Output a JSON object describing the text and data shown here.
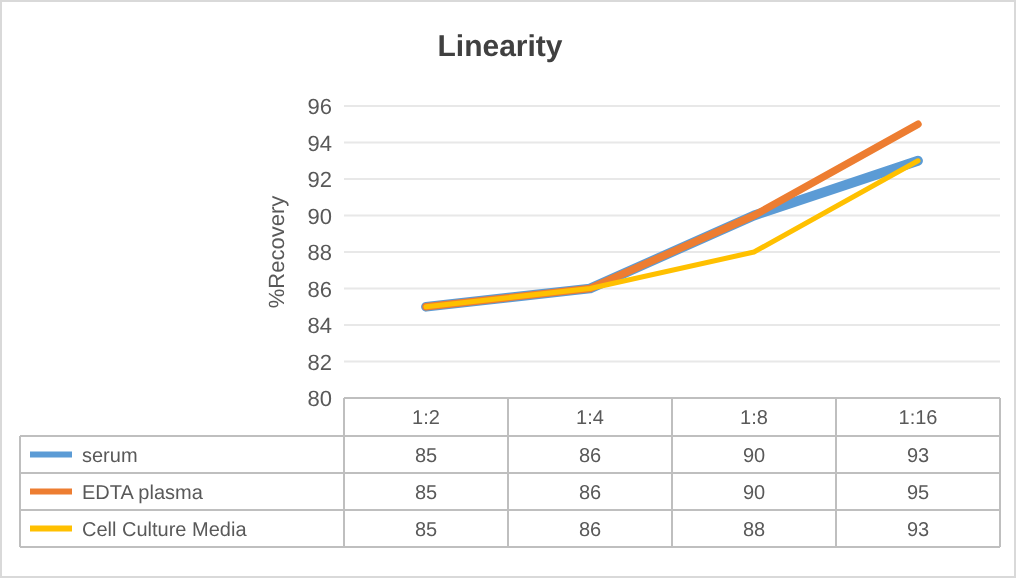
{
  "chart_data": {
    "type": "line",
    "title": "Linearity",
    "ylabel": "%Recovery",
    "categories": [
      "1:2",
      "1:4",
      "1:8",
      "1:16"
    ],
    "series": [
      {
        "name": "serum",
        "color": "#5b9bd5",
        "values": [
          85,
          86,
          90,
          93
        ]
      },
      {
        "name": "EDTA plasma",
        "color": "#ed7d31",
        "values": [
          85,
          86,
          90,
          95
        ]
      },
      {
        "name": "Cell Culture Media",
        "color": "#ffc000",
        "values": [
          85,
          86,
          88,
          93
        ]
      }
    ],
    "ylim": [
      80,
      96
    ],
    "yticks": [
      80,
      82,
      84,
      86,
      88,
      90,
      92,
      94,
      96
    ],
    "grid": "y",
    "legend": "bottom",
    "data_labels": true,
    "marker": "none",
    "line_style": "solid"
  }
}
